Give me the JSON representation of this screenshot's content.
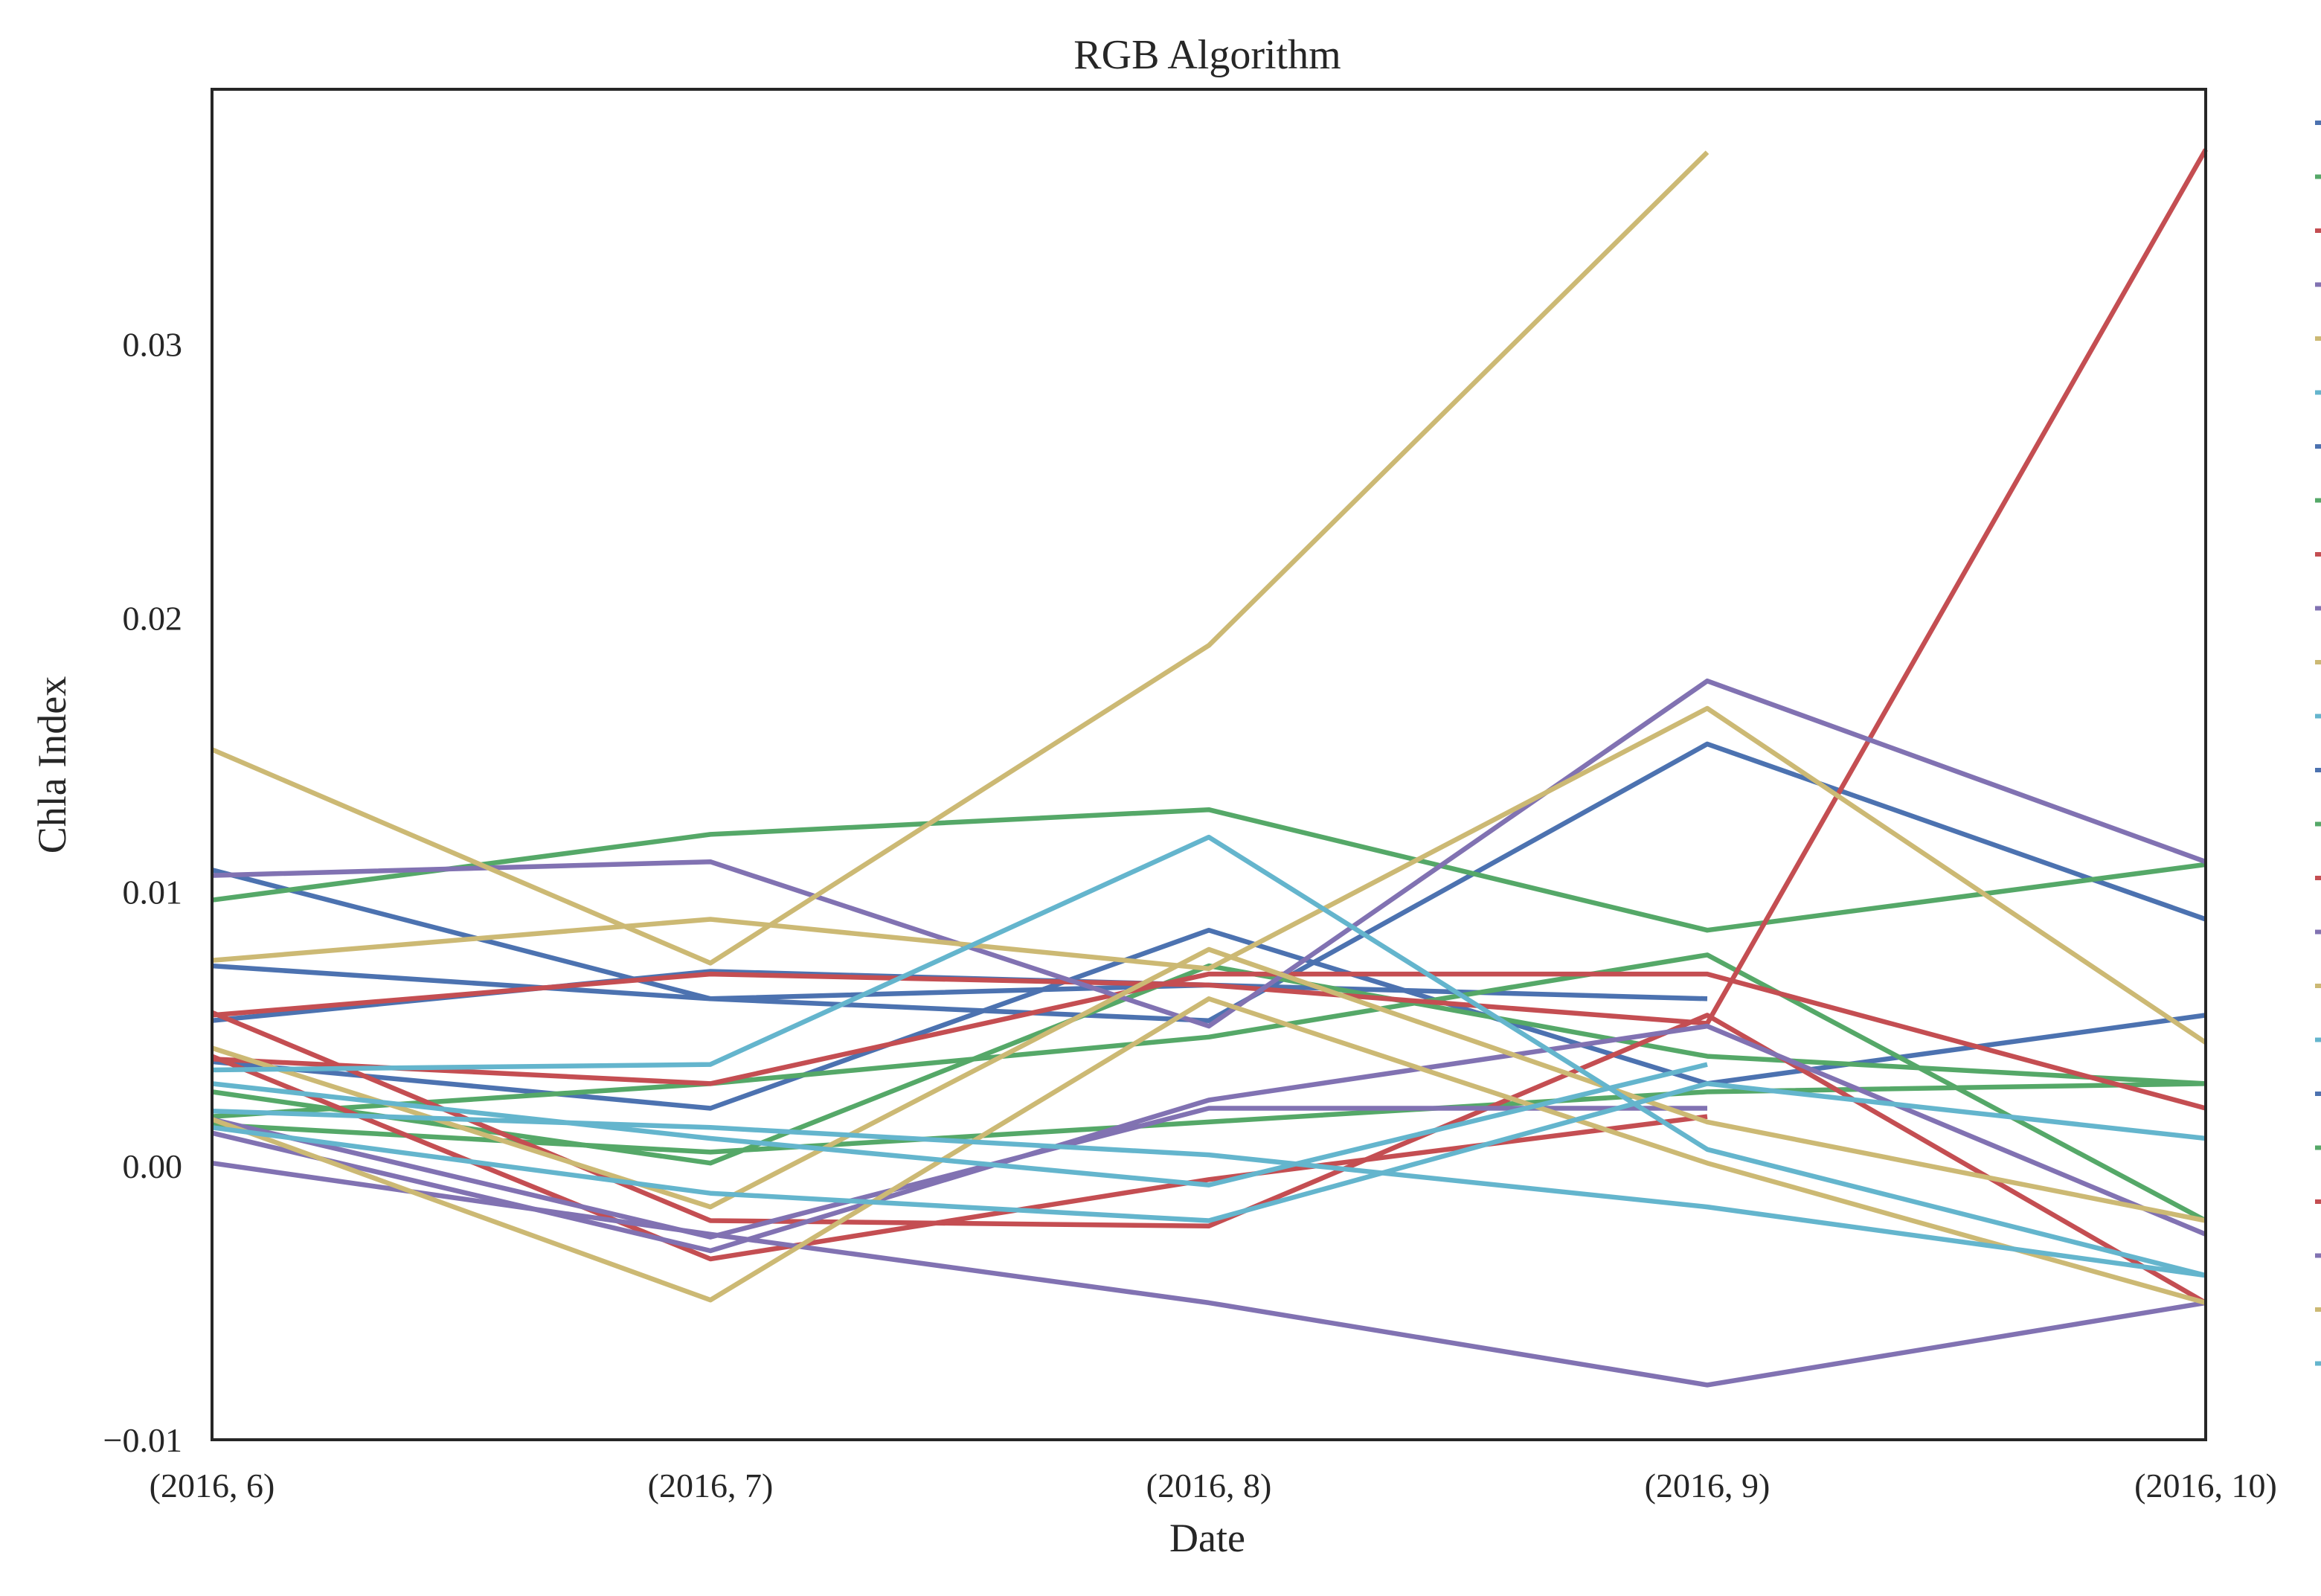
{
  "chart_data": {
    "type": "line",
    "title": "RGB Algorithm",
    "xlabel": "Date",
    "ylabel": "Chla Index",
    "categories": [
      "(2016, 6)",
      "(2016, 7)",
      "(2016, 8)",
      "(2016, 9)",
      "(2016, 10)"
    ],
    "ylim": [
      -0.01,
      0.0393
    ],
    "yticks": [
      {
        "value": -0.01,
        "label": "−0.01"
      },
      {
        "value": 0.0,
        "label": "0.00"
      },
      {
        "value": 0.01,
        "label": "0.01"
      },
      {
        "value": 0.02,
        "label": "0.02"
      },
      {
        "value": 0.03,
        "label": "0.03"
      }
    ],
    "grid": false,
    "legend_placement": "right, outside plot",
    "palette": [
      "#4c72b0",
      "#55a868",
      "#c44e52",
      "#8172b2",
      "#ccb974",
      "#64b5cd"
    ],
    "series": [
      {
        "color": "#4c72b0",
        "values": [
          0.0053,
          0.0071,
          0.0066,
          0.0061,
          null
        ]
      },
      {
        "color": "#4c72b0",
        "values": [
          0.0108,
          0.0061,
          0.0066,
          null,
          null
        ]
      },
      {
        "color": "#4c72b0",
        "values": [
          0.0073,
          0.0061,
          0.0053,
          0.0154,
          0.009
        ]
      },
      {
        "color": "#4c72b0",
        "values": [
          0.0038,
          0.0021,
          0.0086,
          0.003,
          0.0055
        ]
      },
      {
        "color": "#55a868",
        "values": [
          0.0097,
          0.0121,
          0.013,
          0.0086,
          0.011
        ]
      },
      {
        "color": "#55a868",
        "values": [
          0.0018,
          0.003,
          0.0047,
          0.0077,
          -0.002
        ]
      },
      {
        "color": "#55a868",
        "values": [
          0.0027,
          0.0001,
          0.0073,
          0.004,
          0.003
        ]
      },
      {
        "color": "#55a868",
        "values": [
          0.0015,
          0.0005,
          0.0016,
          0.0027,
          0.003
        ]
      },
      {
        "color": "#c44e52",
        "values": [
          0.0055,
          0.007,
          0.0066,
          0.0052,
          0.0371
        ]
      },
      {
        "color": "#c44e52",
        "values": [
          0.0039,
          0.003,
          0.007,
          0.007,
          0.0021
        ]
      },
      {
        "color": "#c44e52",
        "values": [
          0.0056,
          -0.002,
          -0.0022,
          0.0055,
          -0.005
        ]
      },
      {
        "color": "#c44e52",
        "values": [
          0.004,
          -0.0034,
          -0.0005,
          0.0018,
          null
        ]
      },
      {
        "color": "#8172b2",
        "values": [
          0.0106,
          0.0111,
          0.0051,
          0.0177,
          0.0111
        ]
      },
      {
        "color": "#8172b2",
        "values": [
          0.0017,
          -0.0026,
          0.0021,
          0.0021,
          null
        ]
      },
      {
        "color": "#8172b2",
        "values": [
          0.0012,
          -0.0031,
          0.0024,
          0.0051,
          -0.0025
        ]
      },
      {
        "color": "#8172b2",
        "values": [
          0.0001,
          -0.0025,
          -0.005,
          -0.008,
          -0.005
        ]
      },
      {
        "color": "#ccb974",
        "values": [
          0.0152,
          0.0074,
          0.019,
          0.037,
          null
        ]
      },
      {
        "color": "#ccb974",
        "values": [
          0.0075,
          0.009,
          0.0072,
          0.0167,
          0.0045
        ]
      },
      {
        "color": "#ccb974",
        "values": [
          0.0043,
          -0.0015,
          0.0079,
          0.0016,
          -0.002
        ]
      },
      {
        "color": "#ccb974",
        "values": [
          0.0017,
          -0.0049,
          0.0061,
          0.0001,
          -0.005
        ]
      },
      {
        "color": "#64b5cd",
        "values": [
          0.0035,
          0.0037,
          0.012,
          0.0006,
          -0.004
        ]
      },
      {
        "color": "#64b5cd",
        "values": [
          0.003,
          0.001,
          -0.0007,
          0.0037,
          null
        ]
      },
      {
        "color": "#64b5cd",
        "values": [
          0.0014,
          -0.001,
          -0.002,
          0.003,
          0.001
        ]
      },
      {
        "color": "#64b5cd",
        "values": [
          0.002,
          0.0014,
          0.0004,
          -0.0015,
          -0.004
        ]
      }
    ]
  }
}
